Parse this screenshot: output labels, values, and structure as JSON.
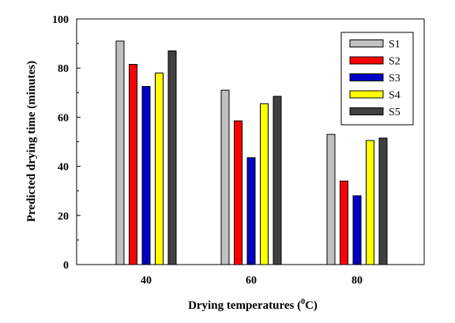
{
  "chart_data": {
    "type": "bar",
    "title": "",
    "xlabel": "Drying temperatures (",
    "xlabel_superscript": "0",
    "xlabel_suffix": "C)",
    "ylabel": "Predicted drying time (minutes)",
    "categories": [
      "40",
      "60",
      "80"
    ],
    "ylim": [
      0,
      100
    ],
    "yticks": [
      "0",
      "20",
      "40",
      "60",
      "80",
      "100"
    ],
    "grid": false,
    "legend_position": "top-right",
    "series": [
      {
        "name": "S1",
        "color": "#c0c0c0",
        "values": [
          91,
          71,
          53
        ]
      },
      {
        "name": "S2",
        "color": "#ff0000",
        "values": [
          81.5,
          58.5,
          34
        ]
      },
      {
        "name": "S3",
        "color": "#0000c8",
        "values": [
          72.5,
          43.5,
          28
        ]
      },
      {
        "name": "S4",
        "color": "#ffff00",
        "values": [
          78,
          65.5,
          50.5
        ]
      },
      {
        "name": "S5",
        "color": "#404040",
        "values": [
          87,
          68.5,
          51.5
        ]
      }
    ]
  }
}
